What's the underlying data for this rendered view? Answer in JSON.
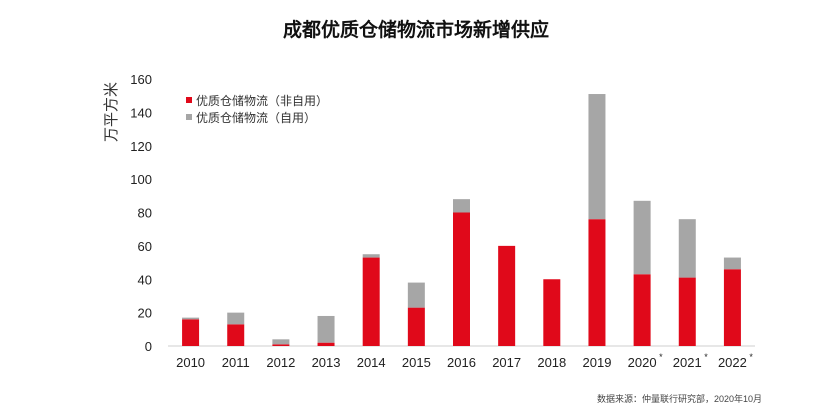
{
  "chart_data": {
    "type": "bar",
    "stacked": true,
    "title": "成都优质仓储物流市场新增供应",
    "ylabel": "万平方米",
    "xlabel": "",
    "ylim": [
      0,
      160
    ],
    "yticks": [
      0,
      20,
      40,
      60,
      80,
      100,
      120,
      140,
      160
    ],
    "grid": false,
    "legend_position": "top-left",
    "categories": [
      "2010",
      "2011",
      "2012",
      "2013",
      "2014",
      "2015",
      "2016",
      "2017",
      "2018",
      "2019",
      "2020",
      "2021",
      "2022"
    ],
    "forecast_marks": [
      "",
      "",
      "",
      "",
      "",
      "",
      "",
      "",
      "",
      "",
      "*",
      "*",
      "*"
    ],
    "series": [
      {
        "name": "优质仓储物流（非自用）",
        "color": "#e0091a",
        "values": [
          16,
          13,
          1,
          2,
          53,
          23,
          80,
          60,
          40,
          76,
          43,
          41,
          46
        ]
      },
      {
        "name": "优质仓储物流（自用）",
        "color": "#a6a6a6",
        "values": [
          1,
          7,
          3,
          16,
          2,
          15,
          8,
          0,
          0,
          75,
          44,
          35,
          7
        ]
      }
    ],
    "source": "数据来源：仲量联行研究部，2020年10月"
  }
}
